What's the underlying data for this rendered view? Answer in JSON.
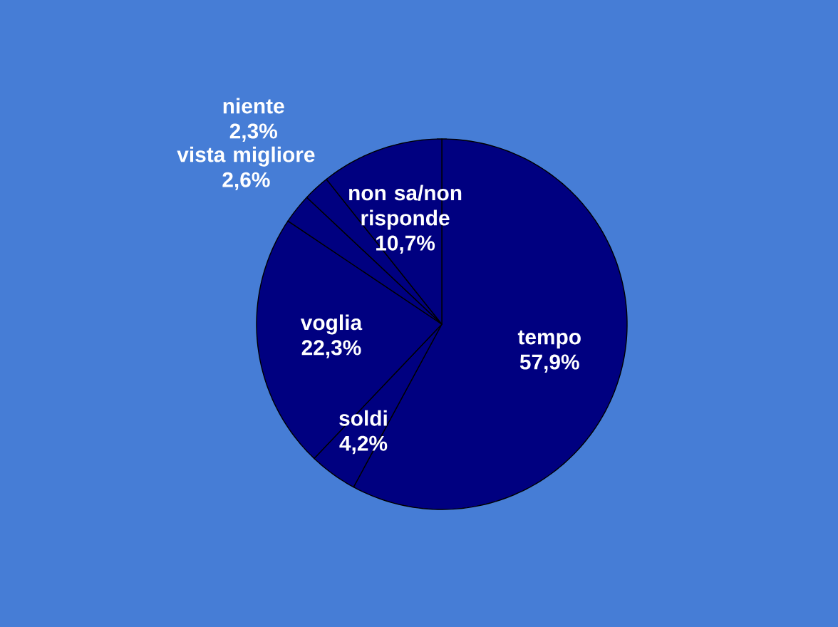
{
  "chart_data": {
    "type": "pie",
    "categories": [
      "tempo",
      "soldi",
      "voglia",
      "vista migliore",
      "niente",
      "non sa/non risponde"
    ],
    "values": [
      57.9,
      4.2,
      22.3,
      2.6,
      2.3,
      10.7
    ],
    "value_labels": [
      "57,9%",
      "4,2%",
      "22,3%",
      "2,6%",
      "2,3%",
      "10,7%"
    ],
    "colors": [
      "#000080",
      "#000080",
      "#000080",
      "#000080",
      "#000080",
      "#000080"
    ]
  }
}
